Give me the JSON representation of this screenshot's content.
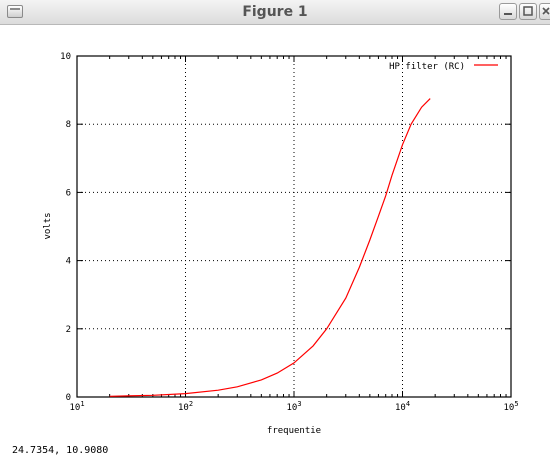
{
  "window": {
    "title": "Figure 1",
    "icon": "app-window-icon",
    "buttons": [
      "minimize-icon",
      "maximize-icon",
      "close-icon"
    ]
  },
  "status": {
    "coordinates": "24.7354,  10.9080"
  },
  "chart_data": {
    "type": "line",
    "xscale": "log",
    "xlabel": "frequentie",
    "ylabel": "volts",
    "xlim": [
      10,
      100000
    ],
    "ylim": [
      0,
      10
    ],
    "xticks": [
      {
        "value": 10,
        "exp": "1"
      },
      {
        "value": 100,
        "exp": "2"
      },
      {
        "value": 1000,
        "exp": "3"
      },
      {
        "value": 10000,
        "exp": "4"
      },
      {
        "value": 100000,
        "exp": "5"
      }
    ],
    "yticks": [
      "0",
      "2",
      "4",
      "6",
      "8",
      "10"
    ],
    "grid": true,
    "legend_position": "top-right",
    "series": [
      {
        "name": "HP filter (RC)",
        "color": "#ff0000",
        "x": [
          20,
          50,
          100,
          200,
          300,
          500,
          700,
          1000,
          1500,
          2000,
          3000,
          4000,
          5000,
          6000,
          7000,
          8000,
          10000,
          12000,
          15000,
          18000
        ],
        "y": [
          0.02,
          0.05,
          0.1,
          0.2,
          0.3,
          0.5,
          0.7,
          1.0,
          1.5,
          2.0,
          2.9,
          3.8,
          4.6,
          5.3,
          5.9,
          6.5,
          7.4,
          8.0,
          8.5,
          8.75
        ]
      }
    ]
  }
}
